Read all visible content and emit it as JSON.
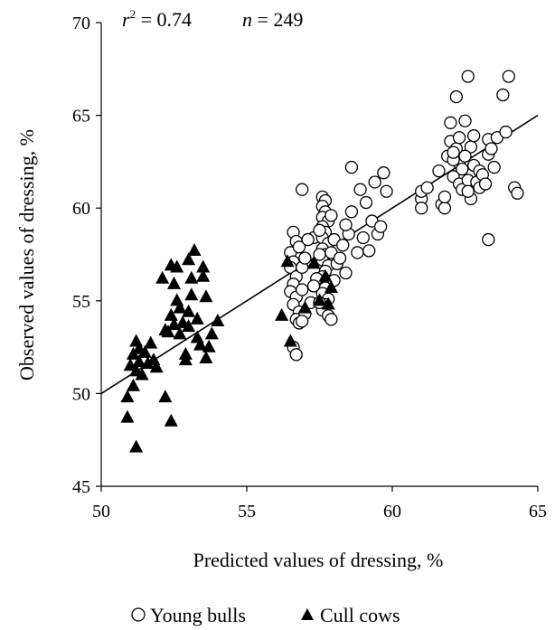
{
  "chart_data": {
    "type": "scatter",
    "xlabel": "Predicted values of dressing, %",
    "ylabel": "Observed values of dressing, %",
    "xlim": [
      50,
      65
    ],
    "ylim": [
      45,
      70
    ],
    "xticks": [
      50,
      55,
      60,
      65
    ],
    "yticks": [
      45,
      50,
      55,
      60,
      65,
      70
    ],
    "annotation": {
      "r2_label": "r",
      "r2_sup": "2",
      "r2_value": " = 0.74",
      "n_label": "n",
      "n_value": " = 249"
    },
    "legend_position": "bottom-center",
    "fit_line": {
      "x": [
        50,
        65
      ],
      "y": [
        50.0,
        65.0
      ]
    },
    "series": [
      {
        "name": "Young bulls",
        "marker": "open-circle",
        "points": [
          [
            56.6,
            58.7
          ],
          [
            56.7,
            58.2
          ],
          [
            56.5,
            57.6
          ],
          [
            56.8,
            57.9
          ],
          [
            56.6,
            57.1
          ],
          [
            56.5,
            56.8
          ],
          [
            56.7,
            56.3
          ],
          [
            56.6,
            55.9
          ],
          [
            56.5,
            55.5
          ],
          [
            56.7,
            55.2
          ],
          [
            56.6,
            54.8
          ],
          [
            56.8,
            54.4
          ],
          [
            56.7,
            54.0
          ],
          [
            56.6,
            52.5
          ],
          [
            56.7,
            52.1
          ],
          [
            56.9,
            55.6
          ],
          [
            56.9,
            56.8
          ],
          [
            57.0,
            57.3
          ],
          [
            57.3,
            58.4
          ],
          [
            57.1,
            58.3
          ],
          [
            56.9,
            61.0
          ],
          [
            57.0,
            54.3
          ],
          [
            56.8,
            53.8
          ],
          [
            56.9,
            53.9
          ],
          [
            57.2,
            54.9
          ],
          [
            57.6,
            60.6
          ],
          [
            57.7,
            60.4
          ],
          [
            57.6,
            60.1
          ],
          [
            57.7,
            59.8
          ],
          [
            57.6,
            59.5
          ],
          [
            57.8,
            59.3
          ],
          [
            57.6,
            59.0
          ],
          [
            57.7,
            58.7
          ],
          [
            57.6,
            58.4
          ],
          [
            57.8,
            58.1
          ],
          [
            57.6,
            57.8
          ],
          [
            57.7,
            57.5
          ],
          [
            57.6,
            57.2
          ],
          [
            57.8,
            56.9
          ],
          [
            57.7,
            56.6
          ],
          [
            57.6,
            56.3
          ],
          [
            57.8,
            56.0
          ],
          [
            57.7,
            55.7
          ],
          [
            57.6,
            55.4
          ],
          [
            57.8,
            55.1
          ],
          [
            57.7,
            54.8
          ],
          [
            57.6,
            54.5
          ],
          [
            57.8,
            54.2
          ],
          [
            57.9,
            54.0
          ],
          [
            57.5,
            57.5
          ],
          [
            57.4,
            56.2
          ],
          [
            57.3,
            55.8
          ],
          [
            57.5,
            54.9
          ],
          [
            57.5,
            58.8
          ],
          [
            57.9,
            59.6
          ],
          [
            58.0,
            58.3
          ],
          [
            58.1,
            57.0
          ],
          [
            57.9,
            57.6
          ],
          [
            58.0,
            56.1
          ],
          [
            58.2,
            57.3
          ],
          [
            58.3,
            58.0
          ],
          [
            58.4,
            56.5
          ],
          [
            58.5,
            58.6
          ],
          [
            58.6,
            62.2
          ],
          [
            58.4,
            59.1
          ],
          [
            58.9,
            61.0
          ],
          [
            58.8,
            57.6
          ],
          [
            59.2,
            57.7
          ],
          [
            59.3,
            59.3
          ],
          [
            59.5,
            58.6
          ],
          [
            59.6,
            59.0
          ],
          [
            59.7,
            61.9
          ],
          [
            59.8,
            60.9
          ],
          [
            59.0,
            58.4
          ],
          [
            58.6,
            59.8
          ],
          [
            59.1,
            60.3
          ],
          [
            59.4,
            61.4
          ],
          [
            61.0,
            60.5
          ],
          [
            61.0,
            60.0
          ],
          [
            61.0,
            60.9
          ],
          [
            61.2,
            61.1
          ],
          [
            61.7,
            60.2
          ],
          [
            61.8,
            60.0
          ],
          [
            61.8,
            60.6
          ],
          [
            61.6,
            62.0
          ],
          [
            61.9,
            62.8
          ],
          [
            62.0,
            63.6
          ],
          [
            62.0,
            64.6
          ],
          [
            62.1,
            61.7
          ],
          [
            62.2,
            63.2
          ],
          [
            62.3,
            62.4
          ],
          [
            62.3,
            61.3
          ],
          [
            62.4,
            61.0
          ],
          [
            62.5,
            64.7
          ],
          [
            62.2,
            66.0
          ],
          [
            62.6,
            67.1
          ],
          [
            62.7,
            63.3
          ],
          [
            62.5,
            62.8
          ],
          [
            62.6,
            61.5
          ],
          [
            62.7,
            60.5
          ],
          [
            62.8,
            62.3
          ],
          [
            62.9,
            61.4
          ],
          [
            63.0,
            62.0
          ],
          [
            63.0,
            61.1
          ],
          [
            63.1,
            61.8
          ],
          [
            63.2,
            61.3
          ],
          [
            63.3,
            63.7
          ],
          [
            63.3,
            62.9
          ],
          [
            63.5,
            62.2
          ],
          [
            63.6,
            63.8
          ],
          [
            63.3,
            58.3
          ],
          [
            63.8,
            66.1
          ],
          [
            63.9,
            64.1
          ],
          [
            64.0,
            67.1
          ],
          [
            64.2,
            61.1
          ],
          [
            64.3,
            60.8
          ],
          [
            62.1,
            62.6
          ],
          [
            62.6,
            60.9
          ],
          [
            62.8,
            63.9
          ],
          [
            62.4,
            62.1
          ],
          [
            63.4,
            63.2
          ],
          [
            62.3,
            63.8
          ],
          [
            62.1,
            63.0
          ]
        ]
      },
      {
        "name": "Cull cows",
        "marker": "filled-triangle",
        "points": [
          [
            50.9,
            49.8
          ],
          [
            50.9,
            48.7
          ],
          [
            51.0,
            51.5
          ],
          [
            51.1,
            52.1
          ],
          [
            51.1,
            50.4
          ],
          [
            51.2,
            52.8
          ],
          [
            51.2,
            51.2
          ],
          [
            51.3,
            52.4
          ],
          [
            51.3,
            51.7
          ],
          [
            51.4,
            51.0
          ],
          [
            51.2,
            47.1
          ],
          [
            51.5,
            52.2
          ],
          [
            51.6,
            51.6
          ],
          [
            51.7,
            52.7
          ],
          [
            51.8,
            51.8
          ],
          [
            51.9,
            51.4
          ],
          [
            52.2,
            49.8
          ],
          [
            52.4,
            48.5
          ],
          [
            52.1,
            56.2
          ],
          [
            52.3,
            53.3
          ],
          [
            52.4,
            54.2
          ],
          [
            52.5,
            53.7
          ],
          [
            52.4,
            56.9
          ],
          [
            52.6,
            56.8
          ],
          [
            52.5,
            55.9
          ],
          [
            52.6,
            55.0
          ],
          [
            52.7,
            54.6
          ],
          [
            52.8,
            53.8
          ],
          [
            52.7,
            53.2
          ],
          [
            52.9,
            52.1
          ],
          [
            52.9,
            51.8
          ],
          [
            53.0,
            53.6
          ],
          [
            53.0,
            54.4
          ],
          [
            53.1,
            55.3
          ],
          [
            53.0,
            57.2
          ],
          [
            53.2,
            57.7
          ],
          [
            53.1,
            56.2
          ],
          [
            53.3,
            54.0
          ],
          [
            53.4,
            52.6
          ],
          [
            53.5,
            56.3
          ],
          [
            53.6,
            55.2
          ],
          [
            53.6,
            51.9
          ],
          [
            53.7,
            52.5
          ],
          [
            53.5,
            56.8
          ],
          [
            53.8,
            53.2
          ],
          [
            54.0,
            53.9
          ],
          [
            53.3,
            53.0
          ],
          [
            52.2,
            53.4
          ],
          [
            56.2,
            54.2
          ],
          [
            56.5,
            52.8
          ],
          [
            56.4,
            57.1
          ],
          [
            57.0,
            54.6
          ],
          [
            57.3,
            57.0
          ],
          [
            57.7,
            56.3
          ],
          [
            57.5,
            55.0
          ],
          [
            57.9,
            55.7
          ],
          [
            57.8,
            54.8
          ]
        ]
      }
    ]
  }
}
